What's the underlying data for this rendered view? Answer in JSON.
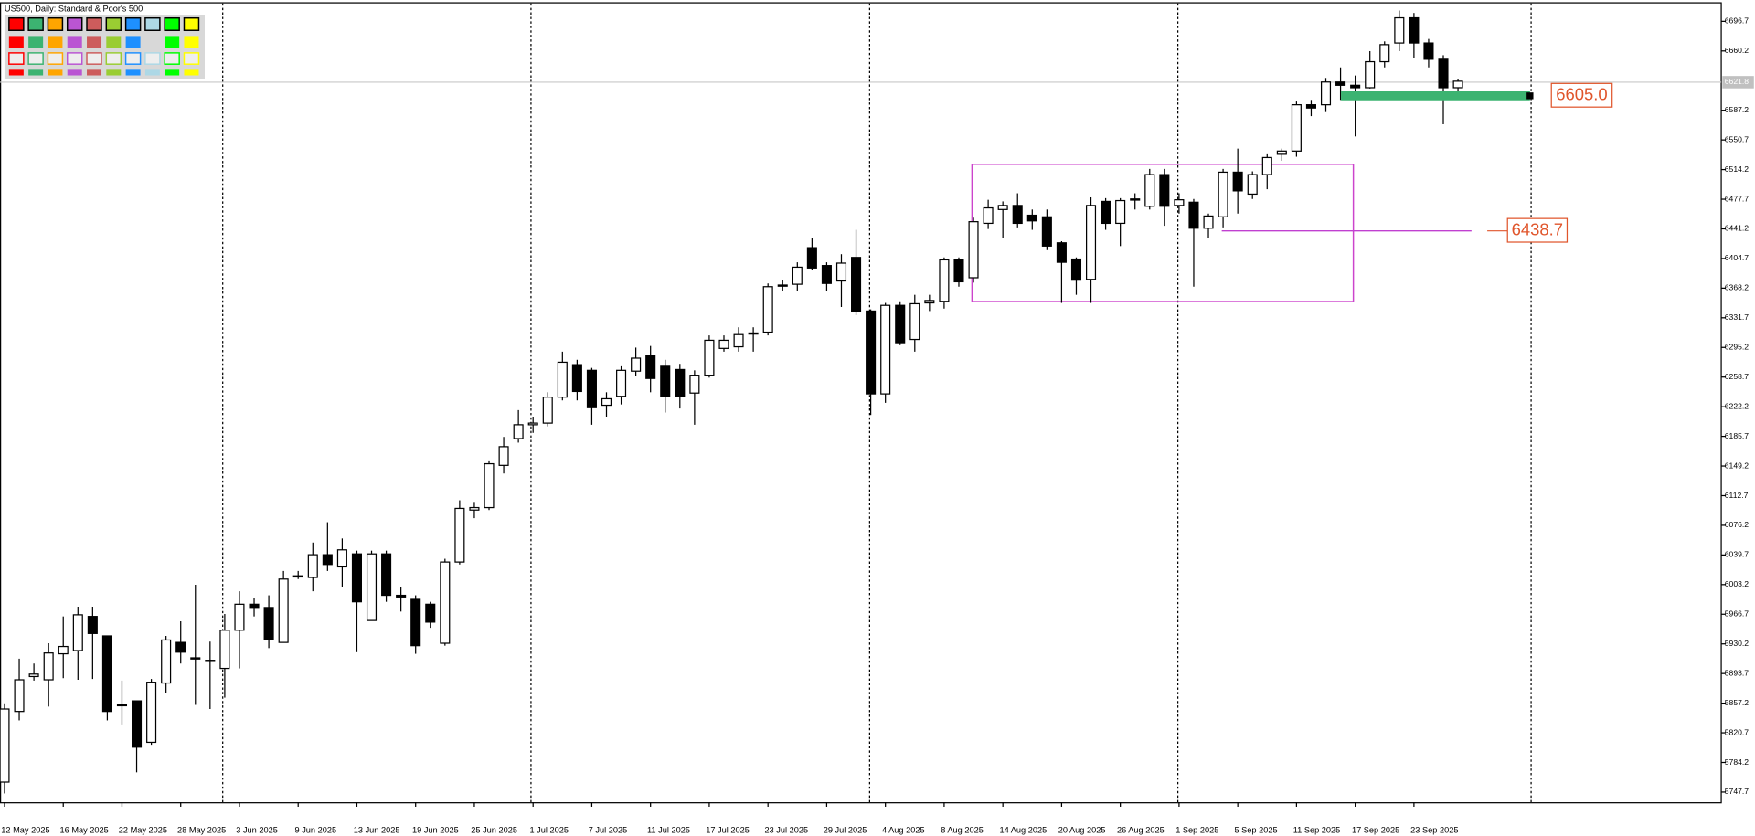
{
  "chart_data": {
    "type": "candlestick",
    "title": "US500, Daily:  Standard & Poor's 500",
    "categories": [
      "12 May 2025",
      null,
      null,
      null,
      "16 May 2025",
      null,
      null,
      null,
      "22 May 2025",
      null,
      null,
      null,
      "28 May 2025",
      null,
      null,
      null,
      "3 Jun 2025",
      null,
      null,
      null,
      "9 Jun 2025",
      null,
      null,
      null,
      "13 Jun 2025",
      null,
      null,
      null,
      "19 Jun 2025",
      null,
      null,
      null,
      "25 Jun 2025",
      null,
      null,
      null,
      "1 Jul 2025",
      null,
      null,
      null,
      "7 Jul 2025",
      null,
      null,
      null,
      "11 Jul 2025",
      null,
      null,
      null,
      "17 Jul 2025",
      null,
      null,
      null,
      "23 Jul 2025",
      null,
      null,
      null,
      "29 Jul 2025",
      null,
      null,
      null,
      "4 Aug 2025",
      null,
      null,
      null,
      "8 Aug 2025",
      null,
      null,
      null,
      "14 Aug 2025",
      null,
      null,
      null,
      "20 Aug 2025",
      null,
      null,
      null,
      "26 Aug 2025",
      null,
      null,
      null,
      "1 Sep 2025",
      null,
      null,
      null,
      "5 Sep 2025",
      null,
      null,
      null,
      "11 Sep 2025",
      null,
      null,
      null,
      "17 Sep 2025",
      null,
      null,
      null,
      "23 Sep 2025",
      null,
      null,
      null
    ],
    "open": [
      5760,
      5847,
      5890,
      5886,
      5918,
      5922,
      5964,
      5940,
      5856,
      5860,
      5809,
      5882,
      5932,
      5912,
      5910,
      5900,
      5947,
      5979,
      5975,
      5932,
      6013,
      6012,
      6040,
      6025,
      6041,
      5959,
      6041,
      5990,
      5985,
      5979,
      5931,
      6031,
      6095,
      6098,
      6150,
      6183,
      6200,
      6202,
      6234,
      6274,
      6267,
      6224,
      6235,
      6266,
      6285,
      6272,
      6268,
      6239,
      6261,
      6294,
      6296,
      6312,
      6314,
      6371,
      6373,
      6418,
      6396,
      6377,
      6406,
      6340,
      6238,
      6347,
      6305,
      6350,
      6352,
      6403,
      6381,
      6448,
      6465,
      6470,
      6458,
      6456,
      6424,
      6404,
      6379,
      6475,
      6448,
      6477,
      6469,
      6508,
      6470,
      6474,
      6442,
      6456,
      6511,
      6484,
      6508,
      6533,
      6537,
      6594,
      6594,
      6622,
      6618,
      6615,
      6647,
      6670,
      6701,
      6670,
      6650,
      6615
    ],
    "high": [
      5857,
      5912,
      5906,
      5931,
      5964,
      5976,
      5976,
      5940,
      5885,
      5860,
      5887,
      5940,
      5958,
      6003,
      5933,
      5967,
      5995,
      5987,
      5990,
      6020,
      6020,
      6055,
      6080,
      6060,
      6045,
      6045,
      6045,
      6000,
      5990,
      5982,
      6035,
      6107,
      6105,
      6155,
      6185,
      6218,
      6210,
      6240,
      6290,
      6280,
      6270,
      6240,
      6272,
      6295,
      6297,
      6280,
      6275,
      6267,
      6310,
      6310,
      6320,
      6320,
      6374,
      6378,
      6400,
      6430,
      6400,
      6410,
      6440,
      6342,
      6350,
      6352,
      6360,
      6360,
      6406,
      6406,
      6455,
      6477,
      6475,
      6485,
      6465,
      6465,
      6426,
      6406,
      6480,
      6479,
      6479,
      6485,
      6515,
      6515,
      6485,
      6478,
      6460,
      6515,
      6540,
      6512,
      6533,
      6540,
      6598,
      6600,
      6627,
      6640,
      6630,
      6660,
      6672,
      6710,
      6707,
      6675,
      6655,
      6626
    ],
    "low": [
      5746,
      5836,
      5885,
      5853,
      5888,
      5886,
      5887,
      5836,
      5831,
      5772,
      5806,
      5870,
      5906,
      5855,
      5850,
      5864,
      5900,
      5964,
      5925,
      5932,
      6010,
      5995,
      6020,
      6000,
      5920,
      5959,
      5982,
      5970,
      5918,
      5950,
      5928,
      6028,
      6085,
      6095,
      6140,
      6178,
      6190,
      6198,
      6230,
      6230,
      6200,
      6210,
      6225,
      6260,
      6240,
      6215,
      6220,
      6200,
      6258,
      6290,
      6290,
      6290,
      6310,
      6365,
      6365,
      6390,
      6365,
      6345,
      6335,
      6212,
      6227,
      6298,
      6290,
      6340,
      6343,
      6370,
      6375,
      6441,
      6430,
      6443,
      6440,
      6415,
      6350,
      6360,
      6350,
      6440,
      6420,
      6465,
      6465,
      6445,
      6460,
      6370,
      6430,
      6443,
      6460,
      6478,
      6490,
      6525,
      6530,
      6580,
      6585,
      6600,
      6555,
      6614,
      6640,
      6660,
      6652,
      6640,
      6570,
      6605
    ],
    "close": [
      5850,
      5886,
      5893,
      5919,
      5927,
      5966,
      5943,
      5847,
      5854,
      5803,
      5883,
      5935,
      5920,
      5913,
      5909,
      5947,
      5979,
      5974,
      5936,
      6010,
      6014,
      6040,
      6028,
      6046,
      5982,
      6041,
      5990,
      5988,
      5928,
      5957,
      6031,
      6097,
      6098,
      6152,
      6173,
      6200,
      6202,
      6234,
      6277,
      6241,
      6221,
      6232,
      6267,
      6282,
      6257,
      6235,
      6235,
      6261,
      6304,
      6304,
      6311,
      6313,
      6370,
      6372,
      6394,
      6393,
      6374,
      6399,
      6340,
      6238,
      6347,
      6301,
      6349,
      6353,
      6403,
      6376,
      6450,
      6467,
      6470,
      6448,
      6451,
      6420,
      6400,
      6378,
      6470,
      6448,
      6476,
      6478,
      6508,
      6469,
      6477,
      6442,
      6457,
      6511,
      6488,
      6508,
      6529,
      6537,
      6594,
      6590,
      6622,
      6618,
      6615,
      6647,
      6668,
      6701,
      6670,
      6650,
      6615,
      6623
    ],
    "ylim": [
      5735.2,
      6720.2
    ],
    "yticks": [
      {
        "value": 6696.7,
        "label": "6696.7"
      },
      {
        "value": 6660.2,
        "label": "6660.2"
      },
      {
        "value": 6587.2,
        "label": "6587.2"
      },
      {
        "value": 6550.7,
        "label": "6550.7"
      },
      {
        "value": 6514.2,
        "label": "6514.2"
      },
      {
        "value": 6477.7,
        "label": "6477.7"
      },
      {
        "value": 6441.2,
        "label": "6441.2"
      },
      {
        "value": 6404.7,
        "label": "6404.7"
      },
      {
        "value": 6368.2,
        "label": "6368.2"
      },
      {
        "value": 6331.7,
        "label": "6331.7"
      },
      {
        "value": 6295.2,
        "label": "6295.2"
      },
      {
        "value": 6258.7,
        "label": "6258.7"
      },
      {
        "value": 6222.2,
        "label": "6222.2"
      },
      {
        "value": 6185.7,
        "label": "6185.7"
      },
      {
        "value": 6149.2,
        "label": "6149.2"
      },
      {
        "value": 6112.7,
        "label": "6112.7"
      },
      {
        "value": 6076.2,
        "label": "6076.2"
      },
      {
        "value": 6039.7,
        "label": "6039.7"
      },
      {
        "value": 6003.2,
        "label": "6003.2"
      },
      {
        "value": 5966.7,
        "label": "5966.7"
      },
      {
        "value": 5930.2,
        "label": "5930.2"
      },
      {
        "value": 5893.7,
        "label": "5893.7"
      },
      {
        "value": 5857.2,
        "label": "5857.2"
      },
      {
        "value": 5820.7,
        "label": "5820.7"
      },
      {
        "value": 5784.2,
        "label": "5784.2"
      },
      {
        "value": 5747.7,
        "label": "5747.7"
      }
    ],
    "current_price": {
      "value": 6621.8,
      "label": "6621.8"
    },
    "price_levels": [
      {
        "value": 6605,
        "label": "6605.0",
        "color": "#3cb371"
      },
      {
        "value": 6438.7,
        "label": "6438.7",
        "color": "#c040d0"
      }
    ],
    "up_color": "#ffffff",
    "down_color": "#000000"
  }
}
